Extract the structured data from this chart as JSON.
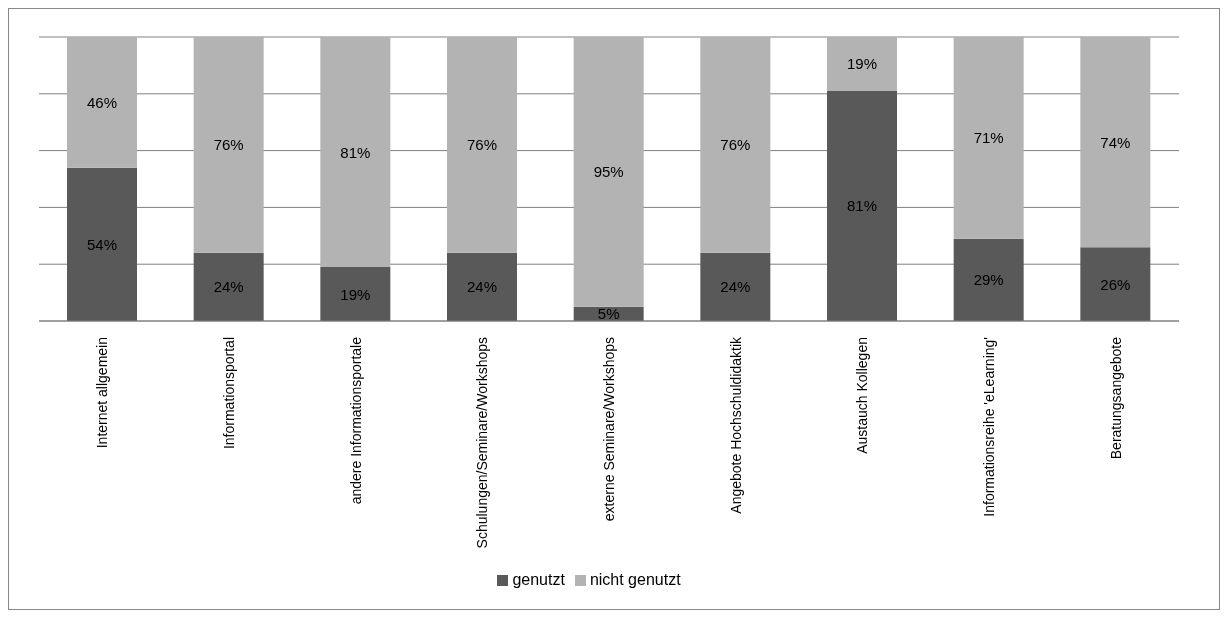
{
  "chart_data": {
    "type": "bar",
    "stacked": true,
    "categories": [
      "Internet allgemein",
      "Informationsportal",
      "andere Informationsportale",
      "Schulungen/Seminare/Workshops",
      "externe Seminare/Workshops",
      "Angebote Hochschuldidaktik",
      "Austauch Kollegen",
      "Informationsreihe 'eLearning'",
      "Beratungsangebote"
    ],
    "series": [
      {
        "name": "genutzt",
        "color": "#595959",
        "values": [
          54,
          24,
          19,
          24,
          5,
          24,
          81,
          29,
          26
        ],
        "value_labels": [
          "54%",
          "24%",
          "19%",
          "24%",
          "5%",
          "24%",
          "81%",
          "29%",
          "26%"
        ]
      },
      {
        "name": "nicht genutzt",
        "color": "#b3b3b3",
        "values": [
          46,
          76,
          81,
          76,
          95,
          76,
          19,
          71,
          74
        ],
        "value_labels": [
          "46%",
          "76%",
          "81%",
          "76%",
          "95%",
          "76%",
          "19%",
          "71%",
          "74%"
        ]
      }
    ],
    "ylim": [
      0,
      100
    ],
    "yticks": [
      {
        "value": 0,
        "label": null
      },
      {
        "value": 20,
        "label": null
      },
      {
        "value": 40,
        "label": null
      },
      {
        "value": 60,
        "label": null
      },
      {
        "value": 80,
        "label": null
      },
      {
        "value": 100,
        "label": null
      }
    ],
    "grid": "y",
    "legend": "bottom"
  }
}
